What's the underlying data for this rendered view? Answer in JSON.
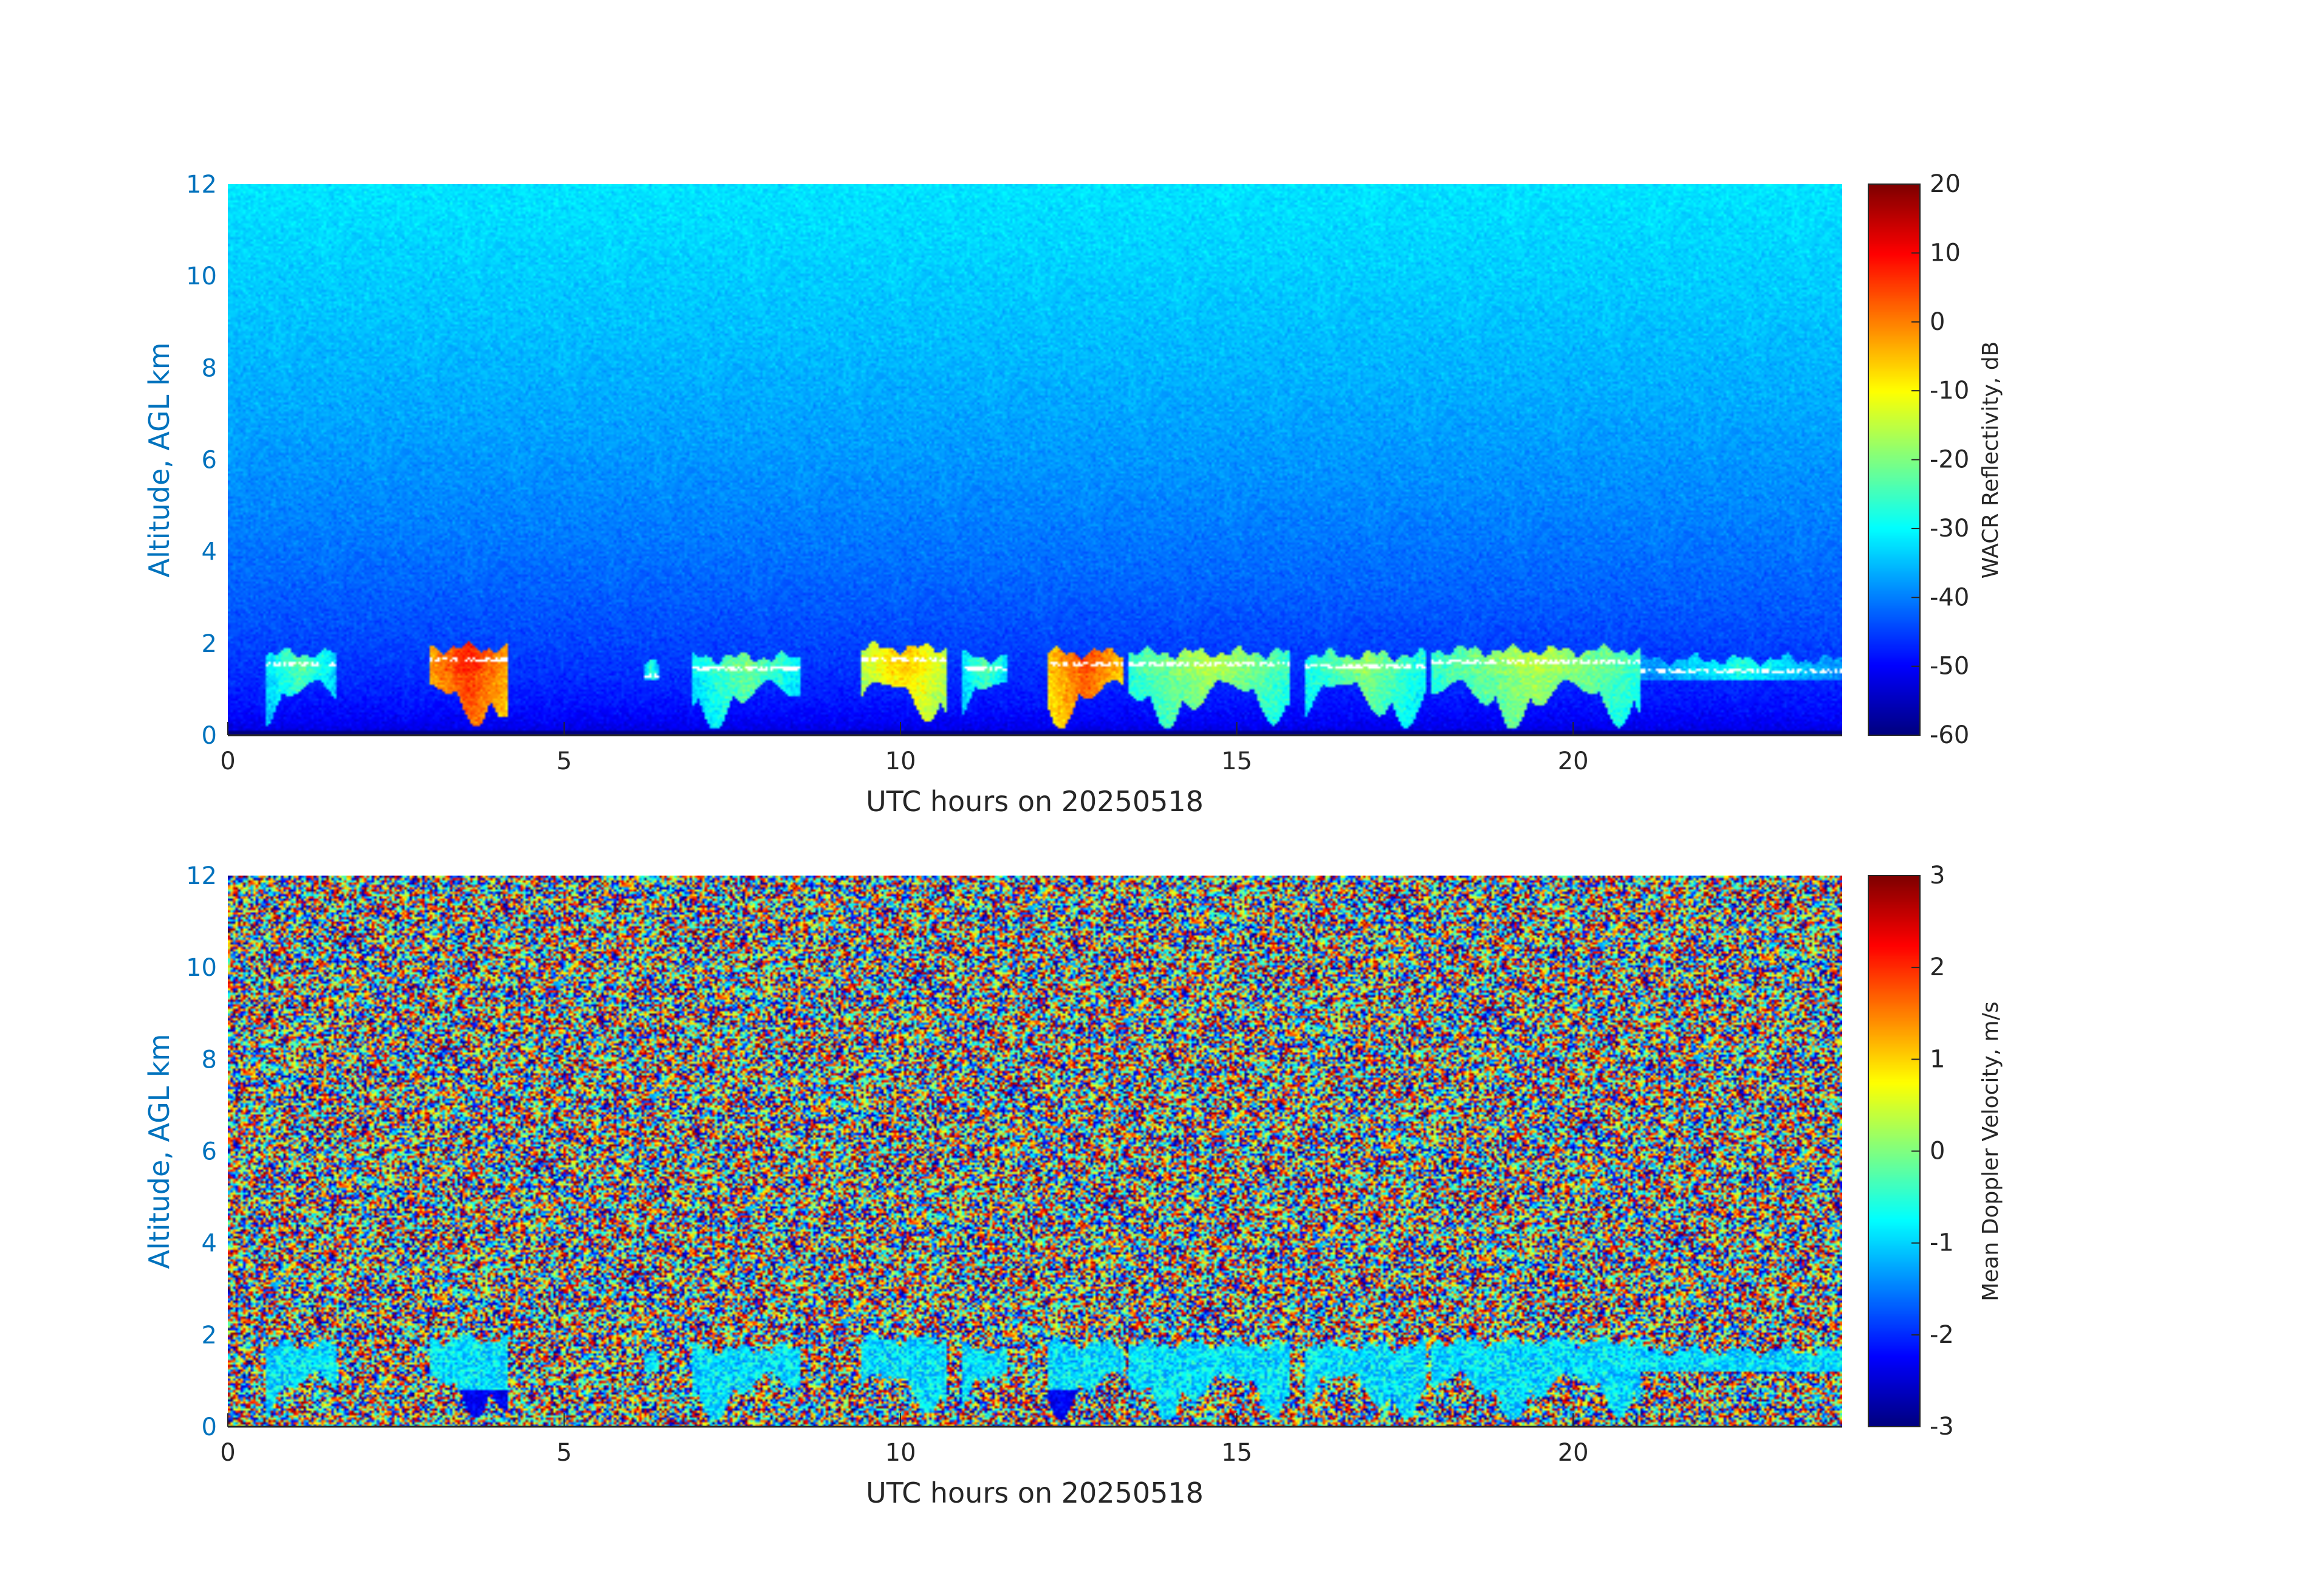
{
  "chart_data": [
    {
      "type": "heatmap",
      "xlabel": "UTC hours on 20250518",
      "ylabel": "Altitude, AGL km",
      "xlim": [
        0,
        24
      ],
      "ylim": [
        0,
        12
      ],
      "x_ticks": [
        0,
        5,
        10,
        15,
        20
      ],
      "y_ticks": [
        0,
        2,
        4,
        6,
        8,
        10,
        12
      ],
      "colormap": "jet",
      "colorbar": {
        "label": "WACR Reflectivity, dB",
        "range": [
          -60,
          20
        ],
        "ticks": [
          20,
          10,
          0,
          -10,
          -20,
          -30,
          -40,
          -50,
          -60
        ]
      },
      "background": {
        "clear_air_dB_at_surface": -55,
        "clear_air_dB_at_top": -32
      },
      "cloud_base_km": 1.35,
      "cloud_top_km": 1.85,
      "cloud_segments": [
        {
          "start": 0.55,
          "end": 1.6,
          "top_km": 1.78,
          "peak_dB": -22,
          "low": true
        },
        {
          "start": 3.0,
          "end": 4.15,
          "top_km": 1.9,
          "peak_dB": 8,
          "low": true
        },
        {
          "start": 6.2,
          "end": 6.4,
          "top_km": 1.55,
          "peak_dB": -25,
          "low": false
        },
        {
          "start": 6.9,
          "end": 8.5,
          "top_km": 1.7,
          "peak_dB": -20,
          "low": true
        },
        {
          "start": 9.4,
          "end": 10.7,
          "top_km": 1.9,
          "peak_dB": -5,
          "low": true
        },
        {
          "start": 10.9,
          "end": 11.6,
          "top_km": 1.7,
          "peak_dB": -22,
          "low": true
        },
        {
          "start": 12.2,
          "end": 13.3,
          "top_km": 1.8,
          "peak_dB": 5,
          "low": true
        },
        {
          "start": 13.4,
          "end": 15.8,
          "top_km": 1.8,
          "peak_dB": -15,
          "low": true
        },
        {
          "start": 16.0,
          "end": 17.8,
          "top_km": 1.75,
          "peak_dB": -18,
          "low": true
        },
        {
          "start": 17.9,
          "end": 21.0,
          "top_km": 1.85,
          "peak_dB": -15,
          "low": true
        },
        {
          "start": 21.0,
          "end": 24.0,
          "top_km": 1.65,
          "peak_dB": -28,
          "low": false
        }
      ]
    },
    {
      "type": "heatmap",
      "xlabel": "UTC hours on 20250518",
      "ylabel": "Altitude, AGL km",
      "xlim": [
        0,
        24
      ],
      "ylim": [
        0,
        12
      ],
      "x_ticks": [
        0,
        5,
        10,
        15,
        20
      ],
      "y_ticks": [
        0,
        2,
        4,
        6,
        8,
        10,
        12
      ],
      "colormap": "jet",
      "colorbar": {
        "label": "Mean Doppler Velocity, m/s",
        "range": [
          -3,
          3
        ],
        "ticks": [
          3,
          2,
          1,
          0,
          -1,
          -2,
          -3
        ]
      },
      "noise_range_m_s": [
        -3,
        3
      ],
      "cloud_velocity_m_s": [
        -1.5,
        -0.3
      ]
    }
  ]
}
